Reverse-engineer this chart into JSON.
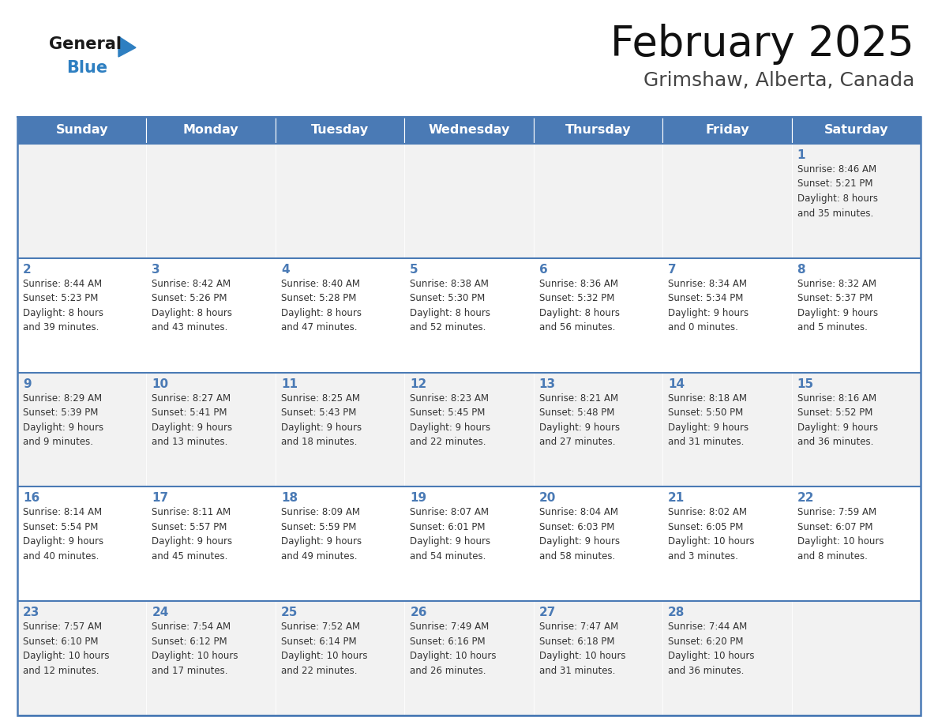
{
  "title": "February 2025",
  "subtitle": "Grimshaw, Alberta, Canada",
  "days_of_week": [
    "Sunday",
    "Monday",
    "Tuesday",
    "Wednesday",
    "Thursday",
    "Friday",
    "Saturday"
  ],
  "header_bg": "#4a7ab5",
  "header_text": "#FFFFFF",
  "cell_bg_odd": "#f2f2f2",
  "cell_bg_even": "#ffffff",
  "border_color": "#4a7ab5",
  "day_number_color": "#4a7ab5",
  "text_color": "#333333",
  "logo_general_color": "#1a1a1a",
  "logo_blue_color": "#2e7fc1",
  "weeks": [
    [
      {
        "day": "",
        "info": ""
      },
      {
        "day": "",
        "info": ""
      },
      {
        "day": "",
        "info": ""
      },
      {
        "day": "",
        "info": ""
      },
      {
        "day": "",
        "info": ""
      },
      {
        "day": "",
        "info": ""
      },
      {
        "day": "1",
        "info": "Sunrise: 8:46 AM\nSunset: 5:21 PM\nDaylight: 8 hours\nand 35 minutes."
      }
    ],
    [
      {
        "day": "2",
        "info": "Sunrise: 8:44 AM\nSunset: 5:23 PM\nDaylight: 8 hours\nand 39 minutes."
      },
      {
        "day": "3",
        "info": "Sunrise: 8:42 AM\nSunset: 5:26 PM\nDaylight: 8 hours\nand 43 minutes."
      },
      {
        "day": "4",
        "info": "Sunrise: 8:40 AM\nSunset: 5:28 PM\nDaylight: 8 hours\nand 47 minutes."
      },
      {
        "day": "5",
        "info": "Sunrise: 8:38 AM\nSunset: 5:30 PM\nDaylight: 8 hours\nand 52 minutes."
      },
      {
        "day": "6",
        "info": "Sunrise: 8:36 AM\nSunset: 5:32 PM\nDaylight: 8 hours\nand 56 minutes."
      },
      {
        "day": "7",
        "info": "Sunrise: 8:34 AM\nSunset: 5:34 PM\nDaylight: 9 hours\nand 0 minutes."
      },
      {
        "day": "8",
        "info": "Sunrise: 8:32 AM\nSunset: 5:37 PM\nDaylight: 9 hours\nand 5 minutes."
      }
    ],
    [
      {
        "day": "9",
        "info": "Sunrise: 8:29 AM\nSunset: 5:39 PM\nDaylight: 9 hours\nand 9 minutes."
      },
      {
        "day": "10",
        "info": "Sunrise: 8:27 AM\nSunset: 5:41 PM\nDaylight: 9 hours\nand 13 minutes."
      },
      {
        "day": "11",
        "info": "Sunrise: 8:25 AM\nSunset: 5:43 PM\nDaylight: 9 hours\nand 18 minutes."
      },
      {
        "day": "12",
        "info": "Sunrise: 8:23 AM\nSunset: 5:45 PM\nDaylight: 9 hours\nand 22 minutes."
      },
      {
        "day": "13",
        "info": "Sunrise: 8:21 AM\nSunset: 5:48 PM\nDaylight: 9 hours\nand 27 minutes."
      },
      {
        "day": "14",
        "info": "Sunrise: 8:18 AM\nSunset: 5:50 PM\nDaylight: 9 hours\nand 31 minutes."
      },
      {
        "day": "15",
        "info": "Sunrise: 8:16 AM\nSunset: 5:52 PM\nDaylight: 9 hours\nand 36 minutes."
      }
    ],
    [
      {
        "day": "16",
        "info": "Sunrise: 8:14 AM\nSunset: 5:54 PM\nDaylight: 9 hours\nand 40 minutes."
      },
      {
        "day": "17",
        "info": "Sunrise: 8:11 AM\nSunset: 5:57 PM\nDaylight: 9 hours\nand 45 minutes."
      },
      {
        "day": "18",
        "info": "Sunrise: 8:09 AM\nSunset: 5:59 PM\nDaylight: 9 hours\nand 49 minutes."
      },
      {
        "day": "19",
        "info": "Sunrise: 8:07 AM\nSunset: 6:01 PM\nDaylight: 9 hours\nand 54 minutes."
      },
      {
        "day": "20",
        "info": "Sunrise: 8:04 AM\nSunset: 6:03 PM\nDaylight: 9 hours\nand 58 minutes."
      },
      {
        "day": "21",
        "info": "Sunrise: 8:02 AM\nSunset: 6:05 PM\nDaylight: 10 hours\nand 3 minutes."
      },
      {
        "day": "22",
        "info": "Sunrise: 7:59 AM\nSunset: 6:07 PM\nDaylight: 10 hours\nand 8 minutes."
      }
    ],
    [
      {
        "day": "23",
        "info": "Sunrise: 7:57 AM\nSunset: 6:10 PM\nDaylight: 10 hours\nand 12 minutes."
      },
      {
        "day": "24",
        "info": "Sunrise: 7:54 AM\nSunset: 6:12 PM\nDaylight: 10 hours\nand 17 minutes."
      },
      {
        "day": "25",
        "info": "Sunrise: 7:52 AM\nSunset: 6:14 PM\nDaylight: 10 hours\nand 22 minutes."
      },
      {
        "day": "26",
        "info": "Sunrise: 7:49 AM\nSunset: 6:16 PM\nDaylight: 10 hours\nand 26 minutes."
      },
      {
        "day": "27",
        "info": "Sunrise: 7:47 AM\nSunset: 6:18 PM\nDaylight: 10 hours\nand 31 minutes."
      },
      {
        "day": "28",
        "info": "Sunrise: 7:44 AM\nSunset: 6:20 PM\nDaylight: 10 hours\nand 36 minutes."
      },
      {
        "day": "",
        "info": ""
      }
    ]
  ]
}
